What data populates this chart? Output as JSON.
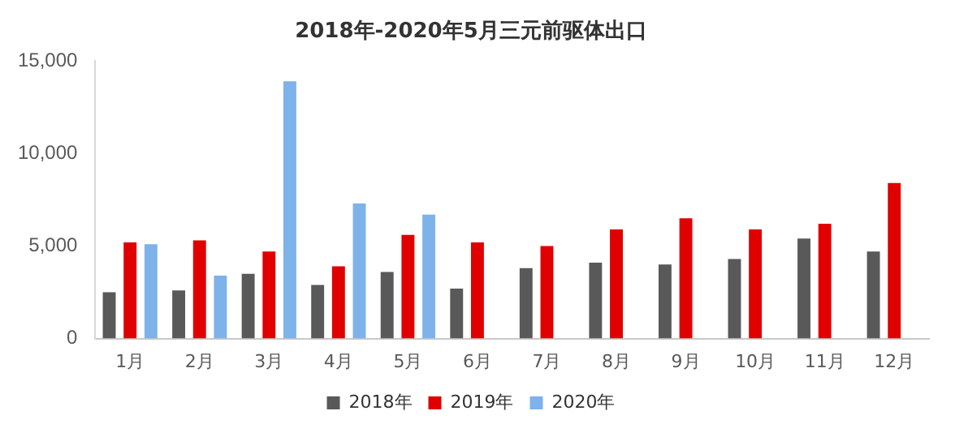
{
  "chart_data": {
    "type": "bar",
    "title": "2018年-2020年5月三元前驱体出口",
    "categories": [
      "1月",
      "2月",
      "3月",
      "4月",
      "5月",
      "6月",
      "7月",
      "8月",
      "9月",
      "10月",
      "11月",
      "12月"
    ],
    "series": [
      {
        "name": "2018年",
        "color": "#595959",
        "values": [
          2500,
          2600,
          3500,
          2900,
          3600,
          2700,
          3800,
          4100,
          4000,
          4300,
          5400,
          4700
        ]
      },
      {
        "name": "2019年",
        "color": "#e00000",
        "values": [
          5200,
          5300,
          4700,
          3900,
          5600,
          5200,
          5000,
          5900,
          6500,
          5900,
          6200,
          8400
        ]
      },
      {
        "name": "2020年",
        "color": "#7eb2ea",
        "values": [
          5100,
          3400,
          13900,
          7300,
          6700,
          null,
          null,
          null,
          null,
          null,
          null,
          null
        ]
      }
    ],
    "ylim": [
      0,
      15000
    ],
    "yticks": [
      0,
      {
        "value": 5000,
        "label": "5,000"
      },
      {
        "value": 10000,
        "label": "10,000"
      },
      {
        "value": 15000,
        "label": "15,000"
      }
    ],
    "grid": false,
    "legend": "bottom"
  }
}
